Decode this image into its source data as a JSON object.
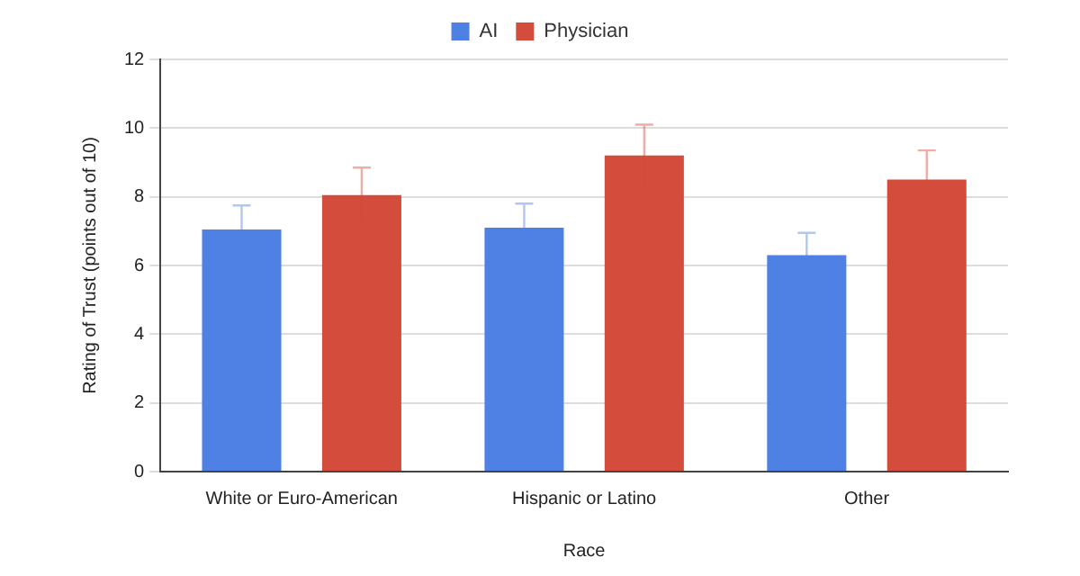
{
  "chart_data": {
    "type": "bar",
    "xlabel": "Race",
    "ylabel": "Rating of Trust (points out of 10)",
    "categories": [
      "White or Euro-American",
      "Hispanic or Latino",
      "Other"
    ],
    "series": [
      {
        "name": "AI",
        "color": "#4f81e4",
        "values": [
          7.05,
          7.1,
          6.3
        ],
        "errors": [
          0.7,
          0.7,
          0.65
        ]
      },
      {
        "name": "Physician",
        "color": "#d44c3b",
        "values": [
          8.05,
          9.2,
          8.5
        ],
        "errors": [
          0.8,
          0.9,
          0.85
        ]
      }
    ],
    "ylim": [
      0,
      12
    ],
    "yticks": [
      0,
      2,
      4,
      6,
      8,
      10,
      12
    ],
    "grid": "y",
    "legend": "top"
  }
}
